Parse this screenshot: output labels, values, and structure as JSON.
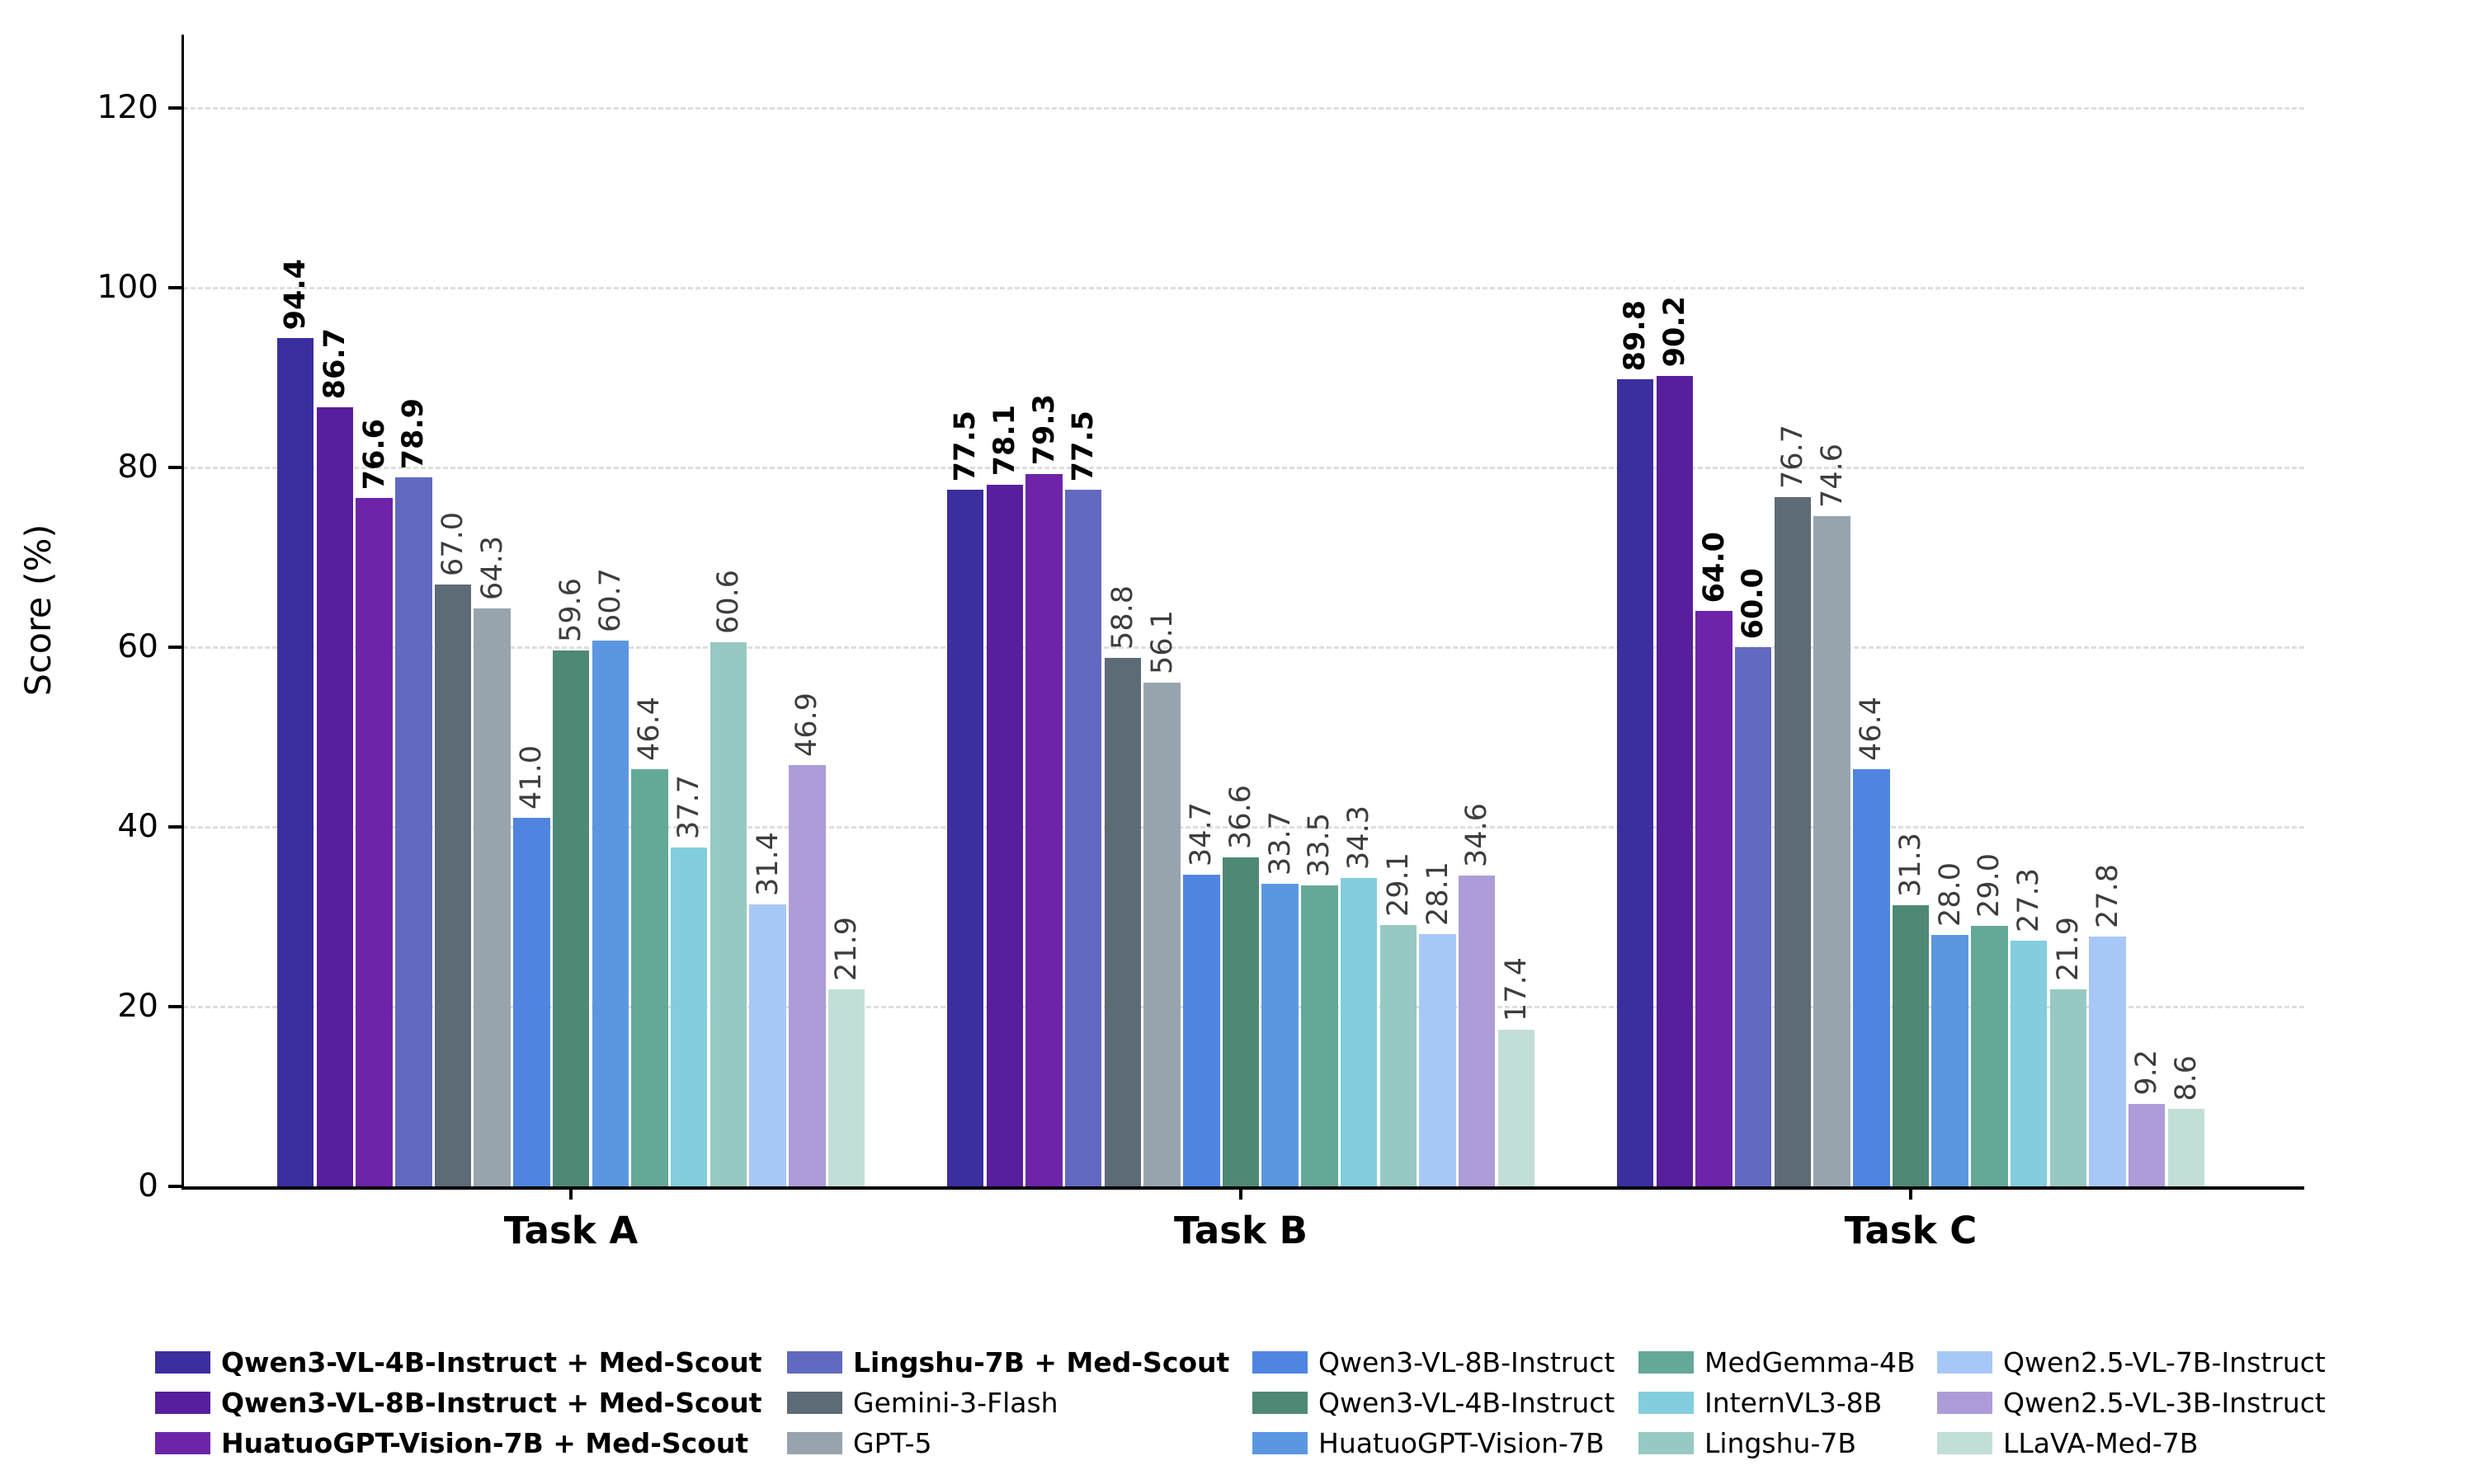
{
  "chart_data": {
    "type": "bar",
    "title": "",
    "xlabel": "",
    "ylabel": "Score (%)",
    "categories": [
      "Task A",
      "Task B",
      "Task C"
    ],
    "ylim": [
      0,
      128
    ],
    "yticks": [
      0,
      20,
      40,
      60,
      80,
      100,
      120
    ],
    "grid": "horizontal-dashed",
    "grid_color": "#dedede",
    "axis_color": "#000000",
    "bar_label_decimals": 1,
    "bar_label_rotation": 90,
    "legend_position": "bottom",
    "legend_ncol": 5,
    "series": [
      {
        "name": "Qwen3-VL-4B-Instruct + Med-Scout",
        "color": "#3b2e9e",
        "emphasis": true,
        "values": [
          94.4,
          77.5,
          89.8
        ]
      },
      {
        "name": "Qwen3-VL-8B-Instruct + Med-Scout",
        "color": "#571f9c",
        "emphasis": true,
        "values": [
          86.7,
          78.1,
          90.2
        ]
      },
      {
        "name": "HuatuoGPT-Vision-7B + Med-Scout",
        "color": "#6d24a8",
        "emphasis": true,
        "values": [
          76.6,
          79.3,
          64.0
        ]
      },
      {
        "name": "Lingshu-7B + Med-Scout",
        "color": "#6169c1",
        "emphasis": true,
        "values": [
          78.9,
          77.5,
          60.0
        ]
      },
      {
        "name": "Gemini-3-Flash",
        "color": "#5c6b76",
        "emphasis": false,
        "values": [
          67.0,
          58.8,
          76.7
        ]
      },
      {
        "name": "GPT-5",
        "color": "#97a4ae",
        "emphasis": false,
        "values": [
          64.3,
          56.1,
          74.6
        ]
      },
      {
        "name": "Qwen3-VL-8B-Instruct",
        "color": "#4f85e0",
        "emphasis": false,
        "values": [
          41.0,
          34.7,
          46.4
        ]
      },
      {
        "name": "Qwen3-VL-4B-Instruct",
        "color": "#4e8976",
        "emphasis": false,
        "values": [
          59.6,
          36.6,
          31.3
        ]
      },
      {
        "name": "HuatuoGPT-Vision-7B",
        "color": "#5b97e0",
        "emphasis": false,
        "values": [
          60.7,
          33.7,
          28.0
        ]
      },
      {
        "name": "MedGemma-4B",
        "color": "#64a898",
        "emphasis": false,
        "values": [
          46.4,
          33.5,
          29.0
        ]
      },
      {
        "name": "InternVL3-8B",
        "color": "#82cdde",
        "emphasis": false,
        "values": [
          37.7,
          34.3,
          27.3
        ]
      },
      {
        "name": "Lingshu-7B",
        "color": "#96c9c1",
        "emphasis": false,
        "values": [
          60.6,
          29.1,
          21.9
        ]
      },
      {
        "name": "Qwen2.5-VL-7B-Instruct",
        "color": "#a7c8f7",
        "emphasis": false,
        "values": [
          31.4,
          28.1,
          27.8
        ]
      },
      {
        "name": "Qwen2.5-VL-3B-Instruct",
        "color": "#ad9cd8",
        "emphasis": false,
        "values": [
          46.9,
          34.6,
          9.2
        ]
      },
      {
        "name": "LLaVA-Med-7B",
        "color": "#c2dfd7",
        "emphasis": false,
        "values": [
          21.9,
          17.4,
          8.6
        ]
      }
    ]
  }
}
